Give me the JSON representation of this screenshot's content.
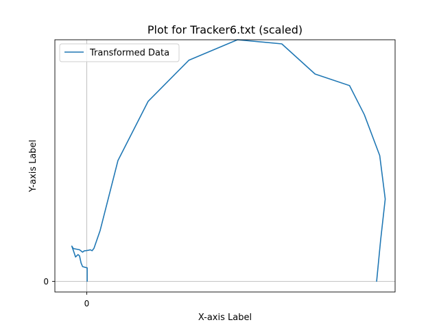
{
  "chart_data": {
    "type": "line",
    "title": "Plot for Tracker6.txt (scaled)",
    "xlabel": "X-axis Label",
    "ylabel": "Y-axis Label",
    "xticks": [
      "0"
    ],
    "yticks": [
      "0"
    ],
    "xlim": [
      -0.105,
      1.0
    ],
    "ylim": [
      -0.045,
      1.0
    ],
    "grid": false,
    "reference_lines": {
      "x": 0,
      "y": 0
    },
    "legend": {
      "position": "top-left",
      "entries": [
        "Transformed Data"
      ]
    },
    "series": [
      {
        "name": "Transformed Data",
        "color": "#1f77b4",
        "points": [
          [
            0.0,
            0.0
          ],
          [
            0.0,
            0.055
          ],
          [
            -0.015,
            0.06
          ],
          [
            -0.02,
            0.075
          ],
          [
            -0.025,
            0.105
          ],
          [
            -0.03,
            0.11
          ],
          [
            -0.038,
            0.1
          ],
          [
            -0.043,
            0.12
          ],
          [
            -0.05,
            0.145
          ],
          [
            -0.045,
            0.135
          ],
          [
            -0.025,
            0.13
          ],
          [
            -0.015,
            0.12
          ],
          [
            -0.01,
            0.125
          ],
          [
            0.005,
            0.128
          ],
          [
            0.01,
            0.13
          ],
          [
            0.016,
            0.126
          ],
          [
            0.022,
            0.136
          ],
          [
            0.042,
            0.21
          ],
          [
            0.1,
            0.5
          ],
          [
            0.198,
            0.745
          ],
          [
            0.33,
            0.915
          ],
          [
            0.488,
            1.0
          ],
          [
            0.632,
            0.983
          ],
          [
            0.74,
            0.858
          ],
          [
            0.852,
            0.81
          ],
          [
            0.9,
            0.69
          ],
          [
            0.95,
            0.52
          ],
          [
            0.968,
            0.34
          ],
          [
            0.953,
            0.17
          ],
          [
            0.94,
            0.0
          ]
        ]
      }
    ]
  }
}
